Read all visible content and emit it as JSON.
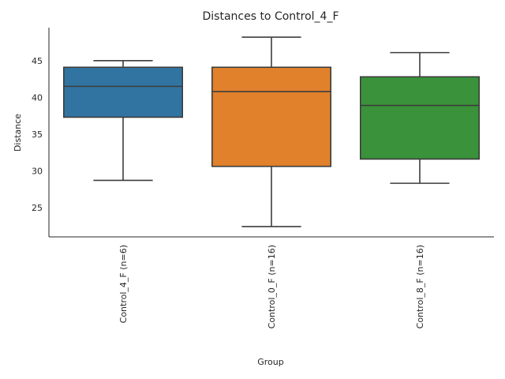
{
  "chart_data": {
    "type": "box",
    "title": "Distances to Control_4_F",
    "xlabel": "Group",
    "ylabel": "Distance",
    "ylim": [
      21,
      49.5
    ],
    "yticks": [
      25,
      30,
      35,
      40,
      45
    ],
    "grid": false,
    "categories": [
      "Control_4_F (n=6)",
      "Control_0_F (n=16)",
      "Control_8_F (n=16)"
    ],
    "boxes": [
      {
        "min": 28.7,
        "q1": 37.3,
        "median": 41.5,
        "q3": 44.1,
        "max": 45.0,
        "color": "#3274a1"
      },
      {
        "min": 22.4,
        "q1": 30.6,
        "median": 40.8,
        "q3": 44.1,
        "max": 48.2,
        "color": "#e1812c"
      },
      {
        "min": 28.3,
        "q1": 31.6,
        "median": 38.9,
        "q3": 42.8,
        "max": 46.1,
        "color": "#3a923a"
      }
    ]
  }
}
